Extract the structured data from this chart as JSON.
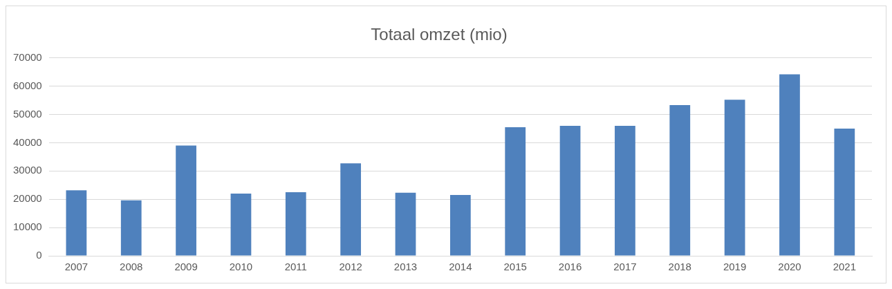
{
  "chart_data": {
    "type": "bar",
    "title": "Totaal omzet (mio)",
    "categories": [
      "2007",
      "2008",
      "2009",
      "2010",
      "2011",
      "2012",
      "2013",
      "2014",
      "2015",
      "2016",
      "2017",
      "2018",
      "2019",
      "2020",
      "2021"
    ],
    "values": [
      23200,
      19600,
      39000,
      22000,
      22500,
      32700,
      22300,
      21500,
      45500,
      46000,
      46000,
      53300,
      55200,
      64200,
      45000
    ],
    "color": "#4f81bd",
    "ylim": [
      0,
      70000
    ],
    "yticks": [
      0,
      10000,
      20000,
      30000,
      40000,
      50000,
      60000,
      70000
    ],
    "grid": "y",
    "legend": false
  }
}
